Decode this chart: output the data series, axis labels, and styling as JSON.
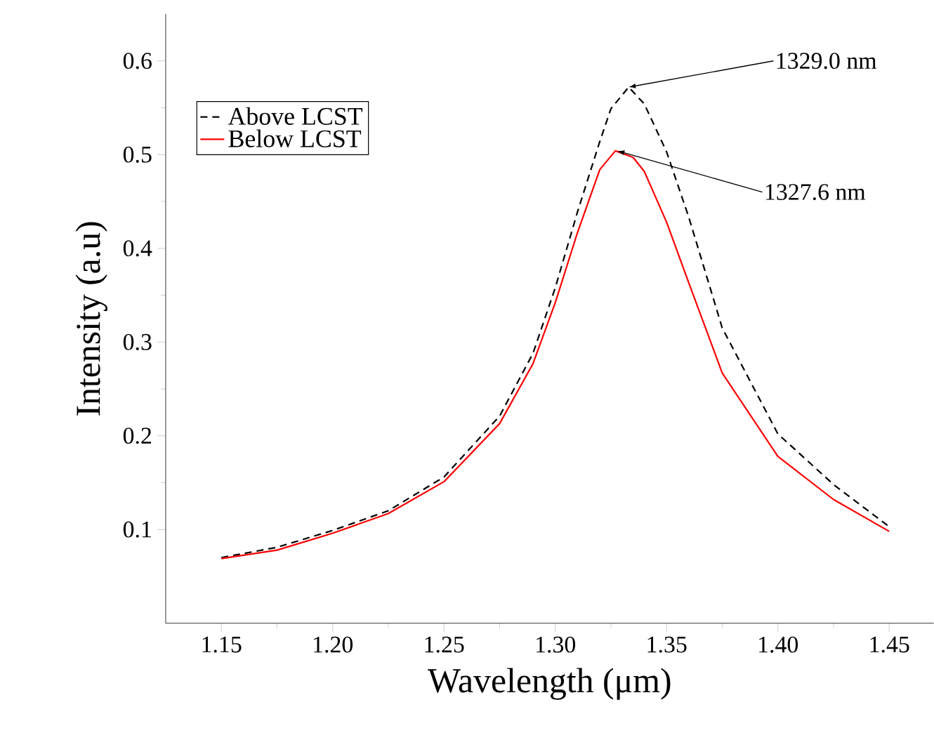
{
  "chart_data": {
    "type": "line",
    "xlabel": "Wavelength (μm)",
    "ylabel": "Intensity (a.u)",
    "xlim": [
      1.125,
      1.47
    ],
    "ylim": [
      0,
      0.65
    ],
    "xticks": [
      1.15,
      {
        "value": 1.2,
        "label": "1.20"
      },
      1.25,
      {
        "value": 1.3,
        "label": "1.30"
      },
      1.35,
      {
        "value": 1.4,
        "label": "1.40"
      },
      1.45
    ],
    "yticks": [
      0.1,
      0.2,
      0.3,
      0.4,
      0.5,
      0.6
    ],
    "legend": "top left",
    "marker": "none",
    "grid": false,
    "series": [
      {
        "name": "Above LCST",
        "color": "#000000",
        "line_style": "dashed",
        "x": [
          1.15,
          1.175,
          1.2,
          1.225,
          1.25,
          1.275,
          1.29,
          1.3,
          1.31,
          1.32,
          1.325,
          1.333,
          1.34,
          1.35,
          1.36,
          1.375,
          1.4,
          1.425,
          1.45
        ],
        "values": [
          0.07,
          0.081,
          0.099,
          0.12,
          0.156,
          0.221,
          0.288,
          0.358,
          0.439,
          0.514,
          0.549,
          0.572,
          0.554,
          0.503,
          0.433,
          0.315,
          0.202,
          0.148,
          0.103
        ]
      },
      {
        "name": "Below LCST",
        "color": "#ff0000",
        "line_style": "solid",
        "x": [
          1.15,
          1.175,
          1.2,
          1.225,
          1.25,
          1.275,
          1.29,
          1.3,
          1.31,
          1.32,
          1.327,
          1.335,
          1.34,
          1.35,
          1.36,
          1.375,
          1.4,
          1.425,
          1.45
        ],
        "values": [
          0.069,
          0.078,
          0.096,
          0.117,
          0.151,
          0.213,
          0.277,
          0.342,
          0.417,
          0.484,
          0.504,
          0.497,
          0.482,
          0.428,
          0.363,
          0.267,
          0.178,
          0.132,
          0.098
        ]
      }
    ],
    "annotations": [
      {
        "text": "1329.0 nm",
        "x": 1.333,
        "y": 0.572
      },
      {
        "text": "1327.6 nm",
        "x": 1.328,
        "y": 0.504
      }
    ]
  }
}
